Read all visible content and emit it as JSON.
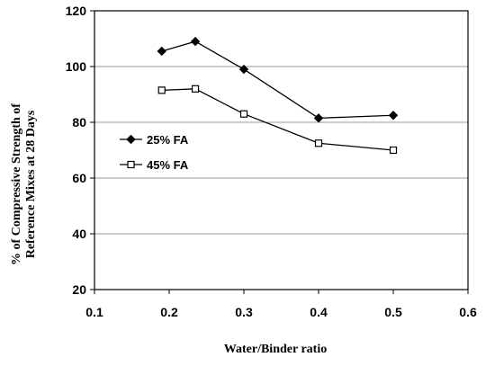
{
  "chart_data": {
    "type": "line",
    "title": "",
    "xlabel": "Water/Binder ratio",
    "ylabel": "% of Compressive Strength of Reference Mixes at 28 Days",
    "ylabel_lines": [
      "% of Compressive Strength of",
      "Reference Mixes at 28 Days"
    ],
    "xlim": [
      0.1,
      0.6
    ],
    "ylim": [
      20,
      120
    ],
    "xticks": [
      "0.1",
      "0.2",
      "0.3",
      "0.4",
      "0.5",
      "0.6"
    ],
    "yticks": [
      "20",
      "40",
      "60",
      "80",
      "100",
      "120"
    ],
    "grid": "horizontal",
    "legend_position": "left",
    "series": [
      {
        "name": "25% FA",
        "marker": "diamond",
        "x": [
          0.19,
          0.235,
          0.3,
          0.4,
          0.5
        ],
        "y": [
          105.5,
          109,
          99,
          81.5,
          82.5
        ]
      },
      {
        "name": "45% FA",
        "marker": "square",
        "x": [
          0.19,
          0.235,
          0.3,
          0.4,
          0.5
        ],
        "y": [
          91.5,
          92,
          83,
          72.5,
          70
        ]
      }
    ]
  }
}
